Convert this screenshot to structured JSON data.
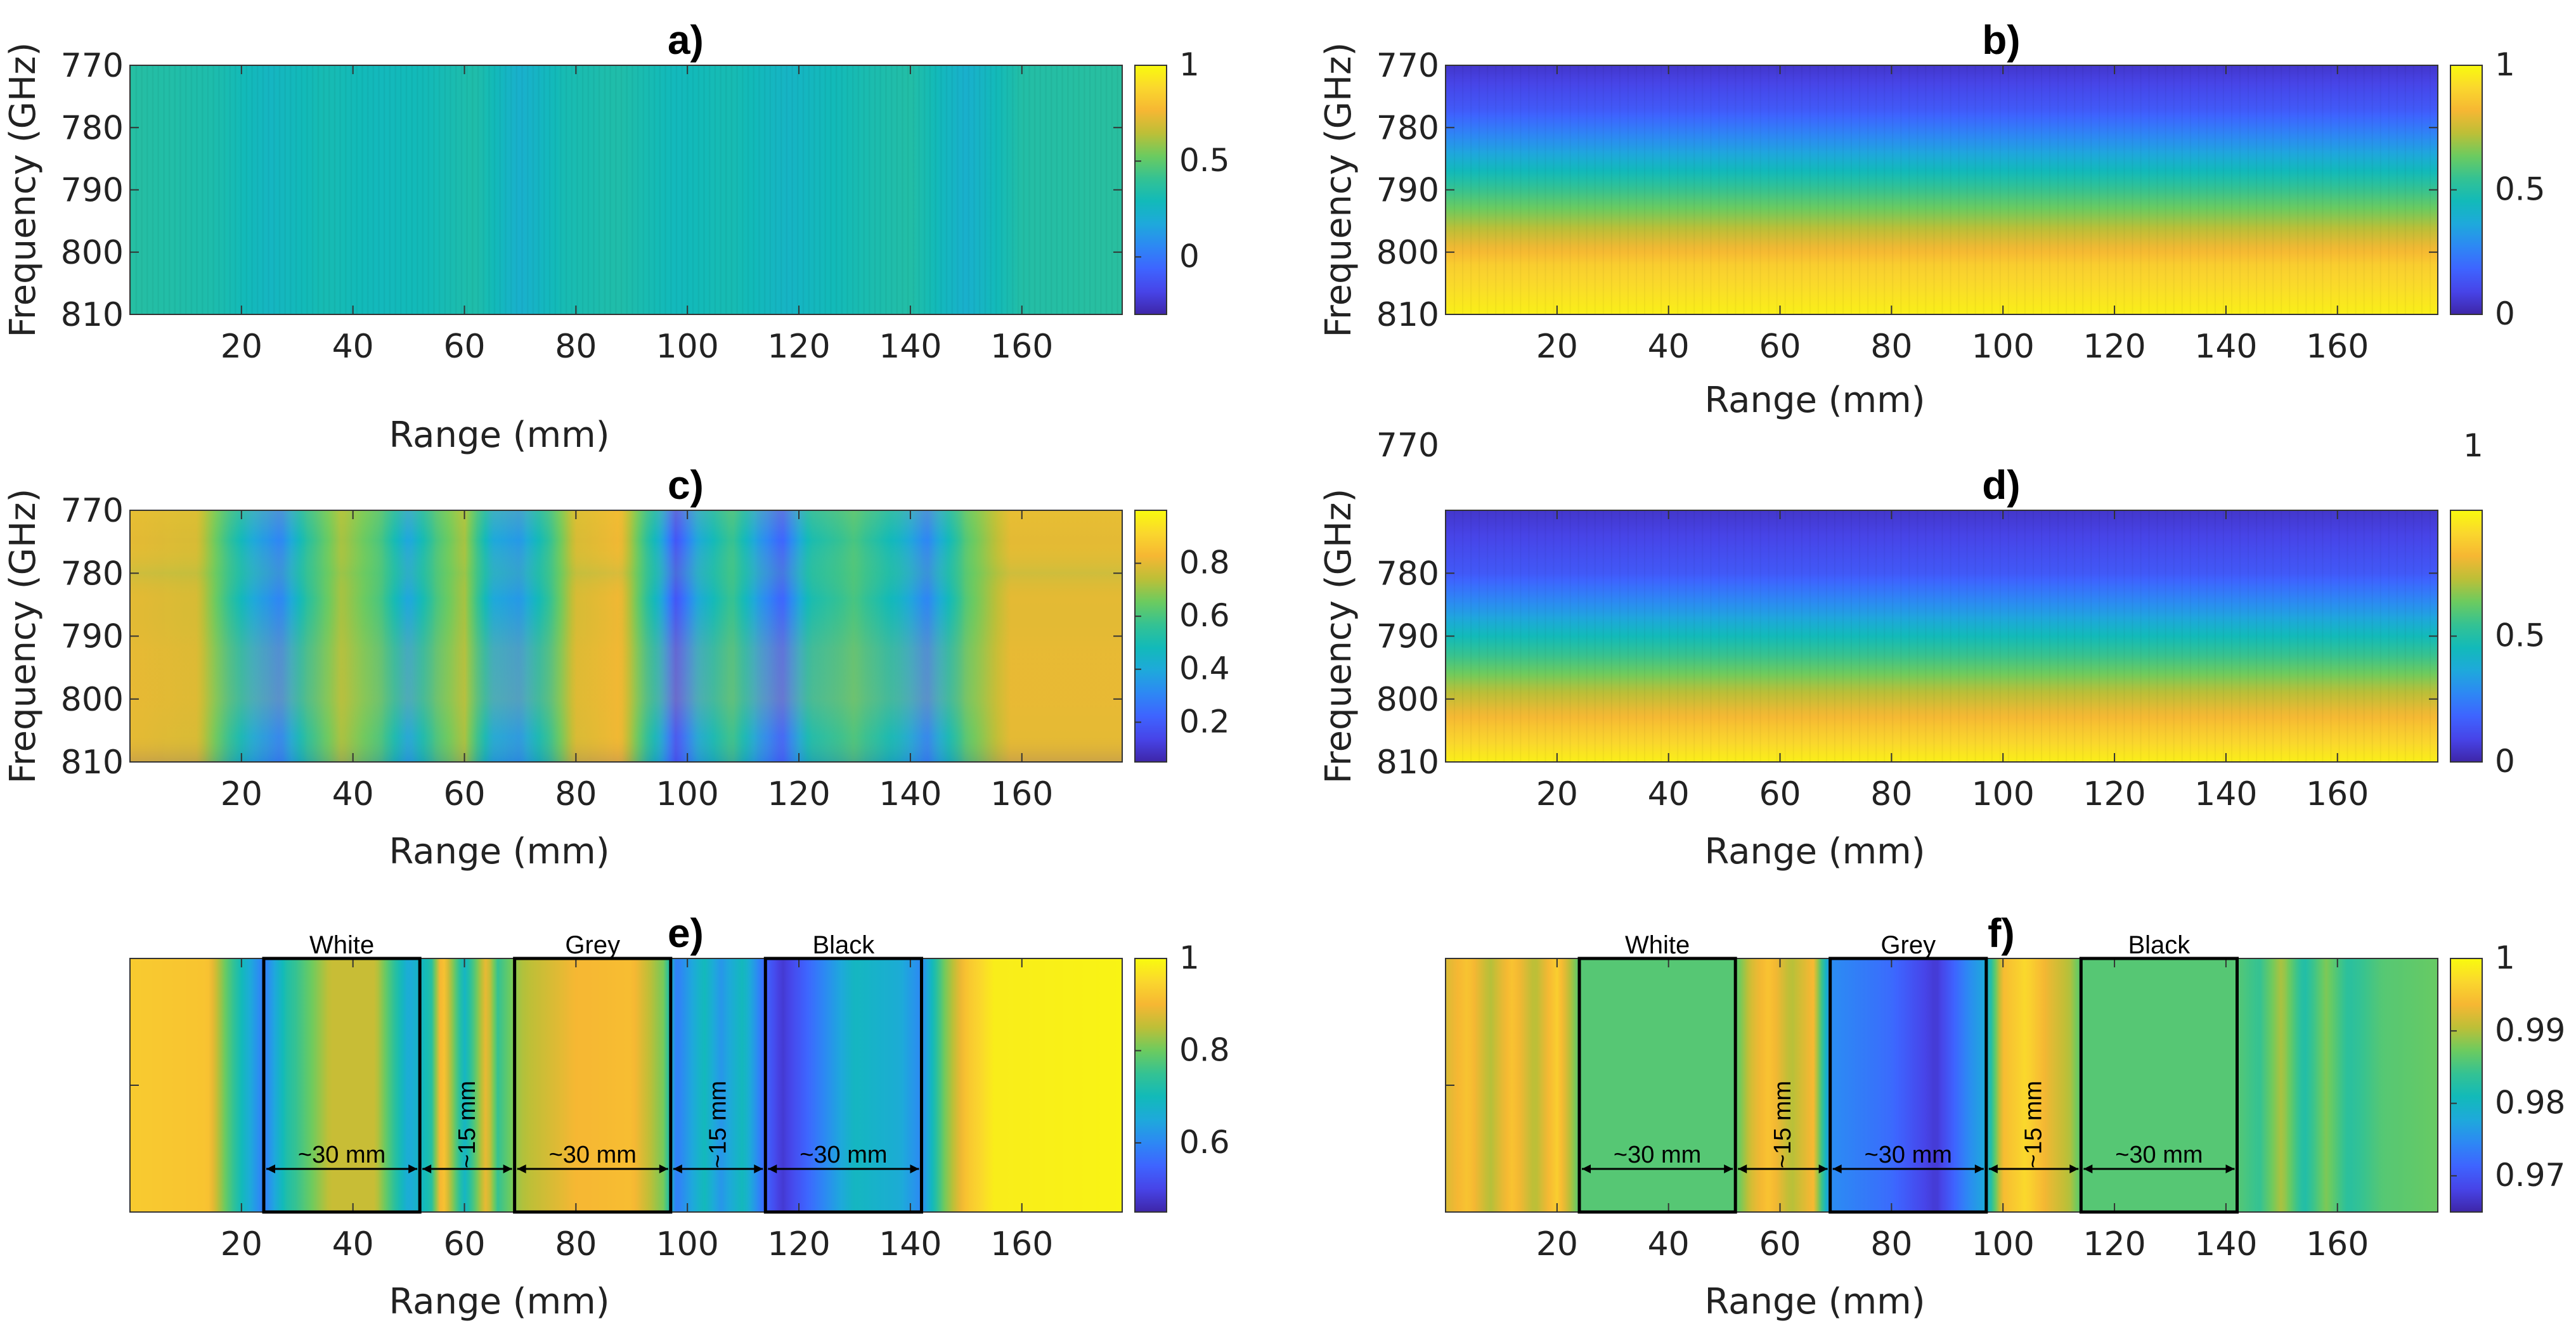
{
  "colormap": [
    "#3e26a8",
    "#4744e8",
    "#3e64ff",
    "#2d88f4",
    "#1ea9db",
    "#12bab9",
    "#34c293",
    "#6ccb5f",
    "#bdbf37",
    "#f6b733",
    "#fad72d",
    "#f9fb0e"
  ],
  "chart_data": [
    {
      "id": "a",
      "title": "a)",
      "type": "heatmap",
      "xlabel": "Range (mm)",
      "ylabel": "Frequency (GHz)",
      "xlim": [
        0,
        178
      ],
      "ylim": [
        770,
        810
      ],
      "xticks": [
        "20",
        "40",
        "60",
        "80",
        "100",
        "120",
        "140",
        "160"
      ],
      "yticks": [
        "770",
        "780",
        "790",
        "800",
        "810"
      ],
      "colorbar": {
        "min": -0.3,
        "max": 1,
        "ticks": [
          "1",
          "0.5",
          "0"
        ],
        "tick_values": [
          1,
          0.5,
          0
        ]
      },
      "pattern": "flat",
      "base_value": 0.33,
      "profile": [
        [
          0,
          0.36
        ],
        [
          15,
          0.33
        ],
        [
          25,
          0.26
        ],
        [
          35,
          0.31
        ],
        [
          45,
          0.28
        ],
        [
          55,
          0.3
        ],
        [
          62,
          0.34
        ],
        [
          70,
          0.22
        ],
        [
          78,
          0.31
        ],
        [
          88,
          0.34
        ],
        [
          98,
          0.28
        ],
        [
          108,
          0.31
        ],
        [
          118,
          0.25
        ],
        [
          130,
          0.31
        ],
        [
          140,
          0.35
        ],
        [
          150,
          0.22
        ],
        [
          160,
          0.35
        ],
        [
          178,
          0.37
        ]
      ]
    },
    {
      "id": "b",
      "title": "b)",
      "type": "heatmap",
      "xlabel": "Range (mm)",
      "ylabel": "Frequency (GHz)",
      "xlim": [
        0,
        178
      ],
      "ylim": [
        770,
        810
      ],
      "xticks": [
        "20",
        "40",
        "60",
        "80",
        "100",
        "120",
        "140",
        "160"
      ],
      "yticks": [
        "770",
        "780",
        "790",
        "800",
        "810"
      ],
      "colorbar": {
        "min": 0,
        "max": 1,
        "ticks": [
          "1",
          "0.5",
          "0"
        ],
        "tick_values": [
          1,
          0.5,
          0
        ]
      },
      "pattern": "vgrad",
      "freq_profile": [
        [
          770,
          0.05
        ],
        [
          777,
          0.15
        ],
        [
          783,
          0.32
        ],
        [
          790,
          0.55
        ],
        [
          796,
          0.72
        ],
        [
          802,
          0.88
        ],
        [
          810,
          0.97
        ]
      ]
    },
    {
      "id": "c",
      "title": "c)",
      "type": "heatmap",
      "xlabel": "Range (mm)",
      "ylabel": "Frequency (GHz)",
      "xlim": [
        0,
        178
      ],
      "ylim": [
        770,
        810
      ],
      "xticks": [
        "20",
        "40",
        "60",
        "80",
        "100",
        "120",
        "140",
        "160"
      ],
      "yticks": [
        "770",
        "780",
        "790",
        "800",
        "810"
      ],
      "colorbar": {
        "min": 0.05,
        "max": 1,
        "ticks": [
          "0.8",
          "0.6",
          "0.4",
          "0.2"
        ],
        "tick_values": [
          0.8,
          0.6,
          0.4,
          0.2
        ]
      },
      "pattern": "blobs",
      "profile": [
        [
          0,
          0.8
        ],
        [
          12,
          0.78
        ],
        [
          18,
          0.55
        ],
        [
          22,
          0.4
        ],
        [
          27,
          0.3
        ],
        [
          32,
          0.55
        ],
        [
          38,
          0.72
        ],
        [
          45,
          0.6
        ],
        [
          50,
          0.38
        ],
        [
          55,
          0.6
        ],
        [
          60,
          0.72
        ],
        [
          65,
          0.4
        ],
        [
          70,
          0.35
        ],
        [
          75,
          0.55
        ],
        [
          80,
          0.78
        ],
        [
          88,
          0.82
        ],
        [
          95,
          0.42
        ],
        [
          98,
          0.18
        ],
        [
          102,
          0.4
        ],
        [
          108,
          0.58
        ],
        [
          113,
          0.35
        ],
        [
          117,
          0.22
        ],
        [
          122,
          0.5
        ],
        [
          130,
          0.6
        ],
        [
          138,
          0.45
        ],
        [
          143,
          0.3
        ],
        [
          150,
          0.62
        ],
        [
          158,
          0.8
        ],
        [
          178,
          0.8
        ]
      ]
    },
    {
      "id": "d",
      "title": "d)",
      "type": "heatmap",
      "xlabel": "Range (mm)",
      "ylabel": "Frequency (GHz)",
      "xlim": [
        0,
        178
      ],
      "ylim": [
        770,
        810
      ],
      "xticks": [
        "20",
        "40",
        "60",
        "80",
        "100",
        "120",
        "140",
        "160"
      ],
      "yticks": [
        "780",
        "790",
        "800",
        "810"
      ],
      "corner_labels": {
        "top_left": "770",
        "top_right": "1"
      },
      "colorbar": {
        "min": 0,
        "max": 1,
        "ticks": [
          "0.5",
          "0"
        ],
        "tick_values": [
          0.5,
          0
        ]
      },
      "pattern": "vgrad",
      "freq_profile": [
        [
          770,
          0.05
        ],
        [
          780,
          0.15
        ],
        [
          786,
          0.32
        ],
        [
          792,
          0.52
        ],
        [
          798,
          0.7
        ],
        [
          804,
          0.85
        ],
        [
          810,
          0.97
        ]
      ]
    },
    {
      "id": "e",
      "title": "e)",
      "type": "heatmap",
      "xlabel": "Range (mm)",
      "xlim": [
        0,
        178
      ],
      "xticks": [
        "20",
        "40",
        "60",
        "80",
        "100",
        "120",
        "140",
        "160"
      ],
      "colorbar": {
        "min": 0.45,
        "max": 1,
        "ticks": [
          "1",
          "0.8",
          "0.6"
        ],
        "tick_values": [
          1,
          0.8,
          0.6
        ]
      },
      "pattern": "columns",
      "profile": [
        [
          0,
          0.93
        ],
        [
          14,
          0.92
        ],
        [
          17,
          0.8
        ],
        [
          20,
          0.7
        ],
        [
          24,
          0.58
        ],
        [
          28,
          0.72
        ],
        [
          36,
          0.86
        ],
        [
          44,
          0.86
        ],
        [
          50,
          0.65
        ],
        [
          54,
          0.72
        ],
        [
          56,
          0.94
        ],
        [
          60,
          0.68
        ],
        [
          64,
          0.9
        ],
        [
          66,
          0.75
        ],
        [
          70,
          0.84
        ],
        [
          80,
          0.9
        ],
        [
          90,
          0.91
        ],
        [
          96,
          0.8
        ],
        [
          98,
          0.58
        ],
        [
          103,
          0.7
        ],
        [
          106,
          0.62
        ],
        [
          110,
          0.7
        ],
        [
          114,
          0.55
        ],
        [
          117,
          0.48
        ],
        [
          122,
          0.56
        ],
        [
          130,
          0.69
        ],
        [
          138,
          0.66
        ],
        [
          142,
          0.6
        ],
        [
          146,
          0.8
        ],
        [
          150,
          0.92
        ],
        [
          155,
          0.98
        ],
        [
          178,
          0.99
        ]
      ],
      "regions": [
        {
          "label": "White",
          "x0": 24,
          "x1": 52,
          "dim": "~30 mm"
        },
        {
          "label": "Grey",
          "x0": 69,
          "x1": 97,
          "dim": "~30 mm"
        },
        {
          "label": "Black",
          "x0": 114,
          "x1": 142,
          "dim": "~30 mm"
        }
      ],
      "gaps": [
        {
          "x0": 52,
          "x1": 69,
          "dim": "~15 mm"
        },
        {
          "x0": 97,
          "x1": 114,
          "dim": "~15 mm"
        }
      ]
    },
    {
      "id": "f",
      "title": "f)",
      "type": "heatmap",
      "xlabel": "Range (mm)",
      "xlim": [
        0,
        178
      ],
      "xticks": [
        "20",
        "40",
        "60",
        "80",
        "100",
        "120",
        "140",
        "160"
      ],
      "colorbar": {
        "min": 0.965,
        "max": 1,
        "ticks": [
          "1",
          "0.99",
          "0.98",
          "0.97"
        ],
        "tick_values": [
          1,
          0.99,
          0.98,
          0.97
        ]
      },
      "pattern": "columns",
      "profile": [
        [
          0,
          0.992
        ],
        [
          4,
          0.995
        ],
        [
          8,
          0.99
        ],
        [
          12,
          0.995
        ],
        [
          16,
          0.99
        ],
        [
          20,
          0.996
        ],
        [
          24,
          0.986
        ],
        [
          52,
          0.986
        ],
        [
          55,
          0.992
        ],
        [
          58,
          0.995
        ],
        [
          62,
          0.99
        ],
        [
          66,
          0.994
        ],
        [
          69,
          0.975
        ],
        [
          80,
          0.972
        ],
        [
          88,
          0.967
        ],
        [
          94,
          0.975
        ],
        [
          97,
          0.978
        ],
        [
          100,
          0.994
        ],
        [
          104,
          0.997
        ],
        [
          108,
          0.993
        ],
        [
          112,
          0.99
        ],
        [
          114,
          0.986
        ],
        [
          142,
          0.986
        ],
        [
          146,
          0.984
        ],
        [
          150,
          0.99
        ],
        [
          154,
          0.982
        ],
        [
          158,
          0.988
        ],
        [
          162,
          0.983
        ],
        [
          168,
          0.986
        ],
        [
          178,
          0.987
        ]
      ],
      "regions": [
        {
          "label": "White",
          "x0": 24,
          "x1": 52,
          "dim": "~30 mm"
        },
        {
          "label": "Grey",
          "x0": 69,
          "x1": 97,
          "dim": "~30 mm"
        },
        {
          "label": "Black",
          "x0": 114,
          "x1": 142,
          "dim": "~30 mm"
        }
      ],
      "gaps": [
        {
          "x0": 52,
          "x1": 69,
          "dim": "~15 mm"
        },
        {
          "x0": 97,
          "x1": 114,
          "dim": "~15 mm"
        }
      ]
    }
  ]
}
